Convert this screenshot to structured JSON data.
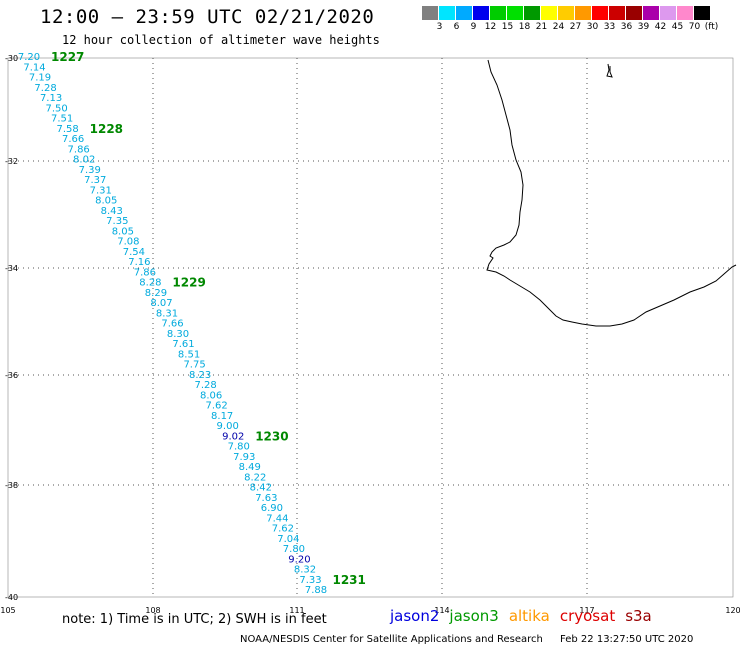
{
  "header": {
    "title": "12:00 – 23:59 UTC 02/21/2020",
    "subtitle": "12 hour collection of altimeter wave heights"
  },
  "colorbar": {
    "colors": [
      "#808080",
      "#00e5ff",
      "#00aaff",
      "#0000ee",
      "#00cc00",
      "#00e000",
      "#009900",
      "#ffff00",
      "#ffcc00",
      "#ff9900",
      "#ff0000",
      "#cc0000",
      "#990000",
      "#aa00aa",
      "#dd99ee",
      "#ff88cc",
      "#000000"
    ],
    "labels": [
      "3",
      "6",
      "9",
      "12",
      "15",
      "18",
      "21",
      "24",
      "27",
      "30",
      "33",
      "36",
      "39",
      "42",
      "45",
      "70",
      "(ft)"
    ]
  },
  "map": {
    "lat_labels": [
      "-30",
      "-32",
      "-34",
      "-36",
      "-38",
      "-40"
    ],
    "lon_labels": [
      "105",
      "108",
      "111",
      "114",
      "117",
      "120"
    ],
    "grid": "dotted",
    "track_color": "#00aadd",
    "highlight_color": "#0000aa",
    "time_label_color": "#008800"
  },
  "track": [
    {
      "v": "7.20"
    },
    {
      "v": "7.14"
    },
    {
      "v": "7.19"
    },
    {
      "v": "7.28"
    },
    {
      "v": "7.13"
    },
    {
      "v": "7.50"
    },
    {
      "v": "7.51"
    },
    {
      "v": "7.58"
    },
    {
      "v": "7.66"
    },
    {
      "v": "7.86"
    },
    {
      "v": "8.02"
    },
    {
      "v": "7.39"
    },
    {
      "v": "7.37"
    },
    {
      "v": "7.31"
    },
    {
      "v": "8.05"
    },
    {
      "v": "8.43"
    },
    {
      "v": "7.35"
    },
    {
      "v": "8.05"
    },
    {
      "v": "7.08"
    },
    {
      "v": "7.54"
    },
    {
      "v": "7.16"
    },
    {
      "v": "7.86"
    },
    {
      "v": "8.28"
    },
    {
      "v": "8.29"
    },
    {
      "v": "8.07"
    },
    {
      "v": "8.31"
    },
    {
      "v": "7.66"
    },
    {
      "v": "8.30"
    },
    {
      "v": "7.61"
    },
    {
      "v": "8.51"
    },
    {
      "v": "7.75"
    },
    {
      "v": "8.23"
    },
    {
      "v": "7.28"
    },
    {
      "v": "8.06"
    },
    {
      "v": "7.62"
    },
    {
      "v": "8.17"
    },
    {
      "v": "9.00"
    },
    {
      "v": "9.02",
      "hl": true
    },
    {
      "v": "7.80"
    },
    {
      "v": "7.93"
    },
    {
      "v": "8.49"
    },
    {
      "v": "8.22"
    },
    {
      "v": "8.42"
    },
    {
      "v": "7.63"
    },
    {
      "v": "6.90"
    },
    {
      "v": "7.44"
    },
    {
      "v": "7.62"
    },
    {
      "v": "7.04"
    },
    {
      "v": "7.80"
    },
    {
      "v": "9.20",
      "hl": true
    },
    {
      "v": "8.32"
    },
    {
      "v": "7.33"
    },
    {
      "v": "7.88"
    }
  ],
  "time_labels": [
    {
      "t": "1227",
      "idx": 0
    },
    {
      "t": "1228",
      "idx": 7
    },
    {
      "t": "1229",
      "idx": 22
    },
    {
      "t": "1230",
      "idx": 37
    },
    {
      "t": "1231",
      "idx": 51
    }
  ],
  "note": "note: 1) Time is in UTC; 2) SWH is in feet",
  "satellites": [
    {
      "name": "jason2",
      "color": "#0000dd"
    },
    {
      "name": "jason3",
      "color": "#009900"
    },
    {
      "name": "altika",
      "color": "#ff9900"
    },
    {
      "name": "cryosat",
      "color": "#dd0000"
    },
    {
      "name": "s3a",
      "color": "#990000"
    }
  ],
  "footer": {
    "org": "NOAA/NESDIS Center for Satellite Applications and Research",
    "timestamp": "Feb 22 13:27:50 UTC 2020"
  }
}
